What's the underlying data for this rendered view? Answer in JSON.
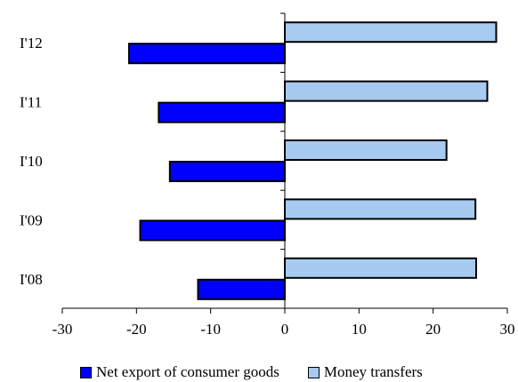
{
  "chart_data": {
    "type": "bar",
    "orientation": "horizontal",
    "categories": [
      "I'12",
      "I'11",
      "I'10",
      "I'09",
      "I'08"
    ],
    "series": [
      {
        "name": "Net export of consumer goods",
        "color": "#0000ff",
        "values": [
          -21,
          -17,
          -15.5,
          -19.5,
          -11.7
        ]
      },
      {
        "name": "Money transfers",
        "color": "#a6caf0",
        "values": [
          28.5,
          27.3,
          21.8,
          25.7,
          25.8
        ]
      }
    ],
    "xlim": [
      -30,
      30
    ],
    "xticks": [
      "-30",
      "-20",
      "-10",
      "0",
      "10",
      "20",
      "30"
    ],
    "title": "",
    "xlabel": "",
    "ylabel": "",
    "grid": false,
    "legend_position": "bottom"
  }
}
